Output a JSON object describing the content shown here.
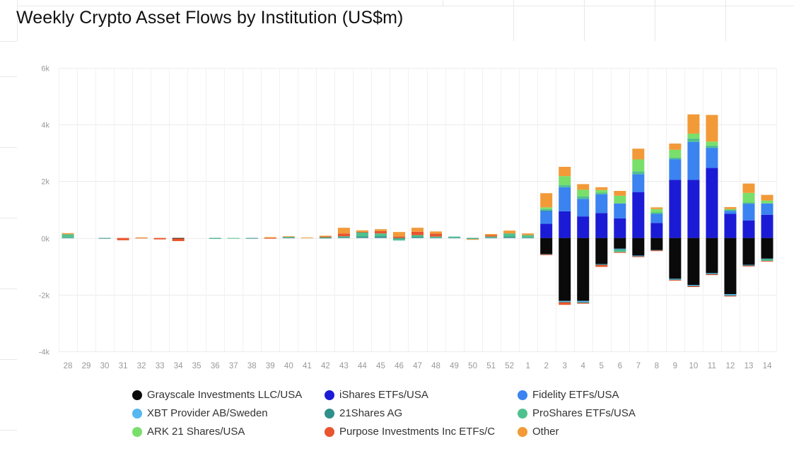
{
  "title": "Weekly Crypto Asset Flows by Institution (US$m)",
  "chart_data": {
    "type": "bar",
    "stacked": true,
    "grid": true,
    "legend_placement": "bottom",
    "ylim": [
      -4000,
      6000
    ],
    "yticks": [
      6000,
      4000,
      2000,
      0,
      -2000,
      -4000
    ],
    "ytick_labels": [
      "6k",
      "4k",
      "2k",
      "0k",
      "-2k",
      "-4k"
    ],
    "categories": [
      "28",
      "29",
      "30",
      "31",
      "32",
      "33",
      "34",
      "35",
      "36",
      "37",
      "38",
      "39",
      "40",
      "41",
      "42",
      "43",
      "44",
      "45",
      "46",
      "47",
      "48",
      "49",
      "50",
      "51",
      "52",
      "1",
      "2",
      "3",
      "4",
      "5",
      "6",
      "7",
      "8",
      "9",
      "10",
      "11",
      "12",
      "13",
      "14"
    ],
    "series": [
      {
        "name": "Grayscale Investments LLC/USA",
        "color": "#0a0a0a",
        "values": [
          0,
          0,
          0,
          0,
          0,
          0,
          -20,
          0,
          0,
          0,
          0,
          0,
          0,
          0,
          0,
          0,
          0,
          0,
          0,
          0,
          0,
          0,
          0,
          0,
          0,
          0,
          -570,
          -2220,
          -2220,
          -920,
          -380,
          -620,
          -430,
          -1440,
          -1660,
          -1240,
          -1980,
          -950,
          -730
        ]
      },
      {
        "name": "iShares ETFs/USA",
        "color": "#1b1bd6",
        "values": [
          0,
          0,
          0,
          0,
          0,
          0,
          0,
          0,
          0,
          0,
          0,
          0,
          0,
          0,
          0,
          0,
          0,
          0,
          0,
          0,
          0,
          0,
          0,
          0,
          0,
          0,
          500,
          940,
          760,
          880,
          690,
          1620,
          530,
          2050,
          2050,
          2470,
          850,
          620,
          820
        ]
      },
      {
        "name": "Fidelity ETFs/USA",
        "color": "#3a83f0",
        "values": [
          0,
          0,
          0,
          0,
          0,
          0,
          0,
          0,
          0,
          0,
          0,
          0,
          0,
          0,
          0,
          0,
          0,
          0,
          0,
          0,
          0,
          0,
          0,
          0,
          0,
          0,
          450,
          850,
          620,
          660,
          530,
          630,
          320,
          730,
          1340,
          710,
          110,
          590,
          400
        ]
      },
      {
        "name": "XBT Provider AB/Sweden",
        "color": "#55b8f0",
        "values": [
          0,
          0,
          0,
          0,
          0,
          0,
          0,
          0,
          0,
          0,
          0,
          0,
          0,
          0,
          0,
          0,
          0,
          0,
          0,
          0,
          0,
          0,
          0,
          0,
          0,
          0,
          -10,
          -30,
          -40,
          -10,
          -20,
          -20,
          -10,
          -20,
          -20,
          -20,
          -40,
          -10,
          -10
        ]
      },
      {
        "name": "21Shares AG",
        "color": "#2f8f8a",
        "values": [
          20,
          0,
          -10,
          0,
          0,
          0,
          0,
          0,
          -10,
          0,
          -10,
          0,
          20,
          0,
          10,
          40,
          50,
          60,
          -30,
          40,
          20,
          20,
          -20,
          20,
          40,
          20,
          20,
          -20,
          -30,
          -20,
          -20,
          -10,
          0,
          -20,
          -20,
          -20,
          -20,
          -20,
          -10
        ]
      },
      {
        "name": "ProShares ETFs/USA",
        "color": "#4fc18e",
        "values": [
          110,
          0,
          0,
          0,
          0,
          0,
          0,
          0,
          -20,
          -20,
          0,
          0,
          20,
          0,
          20,
          20,
          150,
          100,
          -60,
          60,
          30,
          30,
          -20,
          30,
          120,
          80,
          50,
          80,
          90,
          60,
          -80,
          100,
          50,
          60,
          120,
          80,
          40,
          40,
          -60
        ]
      },
      {
        "name": "ARK 21 Shares/USA",
        "color": "#78e06a",
        "values": [
          0,
          0,
          0,
          0,
          0,
          0,
          0,
          0,
          0,
          0,
          0,
          0,
          0,
          0,
          0,
          0,
          0,
          0,
          0,
          0,
          0,
          0,
          0,
          0,
          0,
          0,
          60,
          310,
          230,
          90,
          270,
          420,
          120,
          270,
          170,
          140,
          20,
          340,
          100
        ]
      },
      {
        "name": "Purpose Investments Inc ETFs/C",
        "color": "#e8552e",
        "values": [
          0,
          0,
          0,
          -80,
          10,
          -50,
          -90,
          0,
          0,
          0,
          0,
          -20,
          0,
          0,
          20,
          100,
          20,
          80,
          50,
          120,
          100,
          0,
          0,
          40,
          0,
          0,
          -20,
          -90,
          -30,
          -70,
          -20,
          -20,
          -20,
          -20,
          -30,
          -30,
          -20,
          -20,
          -20
        ]
      },
      {
        "name": "Other",
        "color": "#f29a38",
        "values": [
          40,
          0,
          0,
          0,
          10,
          0,
          0,
          0,
          0,
          0,
          0,
          30,
          20,
          20,
          30,
          200,
          50,
          70,
          160,
          140,
          80,
          0,
          -10,
          50,
          100,
          60,
          500,
          330,
          200,
          100,
          170,
          380,
          60,
          220,
          680,
          940,
          70,
          330,
          200
        ]
      }
    ]
  }
}
